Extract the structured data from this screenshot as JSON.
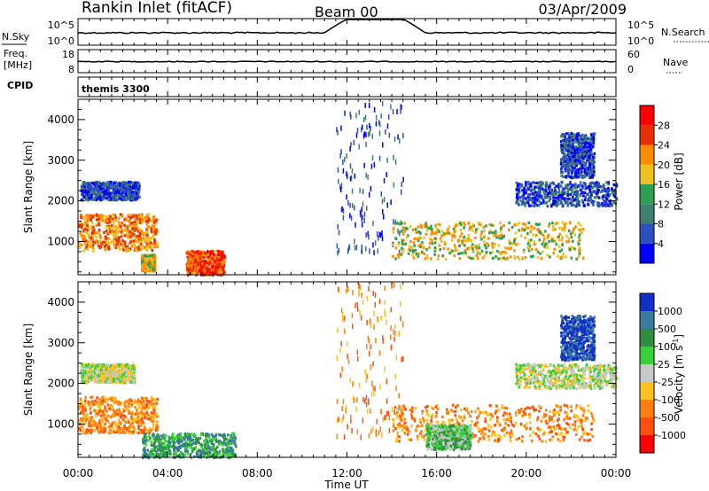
{
  "header": {
    "title": "Rankin Inlet (fitACF)",
    "beam": "Beam 00",
    "date": "03/Apr/2009"
  },
  "nsky_panel": {
    "left_label": "N.Sky",
    "right_label": "N.Search",
    "left_ticks": [
      "10^5",
      "10^0"
    ],
    "right_ticks": [
      "10^5",
      "10^0"
    ]
  },
  "freq_panel": {
    "left_label_line1": "Freq.",
    "left_label_line2": "[MHz]",
    "right_label": "Nave",
    "left_ticks": [
      "18",
      "8"
    ],
    "right_ticks": [
      "60",
      "0"
    ]
  },
  "cpid": {
    "label": "CPID",
    "value": "themis 3300"
  },
  "time_axis": {
    "label": "Time UT",
    "ticks": [
      "00:00",
      "04:00",
      "08:00",
      "12:00",
      "16:00",
      "20:00",
      "00:00"
    ]
  },
  "range_axis": {
    "label": "Slant Range [km]",
    "ticks": [
      "1000",
      "2000",
      "3000",
      "4000"
    ],
    "ylim": [
      180,
      4500
    ]
  },
  "power_bar": {
    "label": "Power [dB]",
    "ticks": [
      "4",
      "8",
      "12",
      "16",
      "20",
      "24",
      "28"
    ],
    "colors": [
      "#0000ff",
      "#2f4fbf",
      "#3f7f6f",
      "#2fa050",
      "#f0c020",
      "#ff8c00",
      "#e83000",
      "#ff0000"
    ]
  },
  "velocity_bar": {
    "label_main": "Velocity [m s",
    "label_sup": "-1",
    "label_end": "]",
    "ticks": [
      "1000",
      "500",
      "100",
      "25",
      "-25",
      "-100",
      "-500",
      "-1000"
    ],
    "colors": [
      "#1030c8",
      "#3a7ca0",
      "#2f8f3f",
      "#38d038",
      "#c8c8c8",
      "#ffc020",
      "#ff8010",
      "#ff5010",
      "#ff0000"
    ]
  },
  "chart_data": [
    {
      "type": "heatmap",
      "name": "power",
      "xlabel": "Time UT",
      "ylabel": "Slant Range [km]",
      "xlim": [
        0,
        24
      ],
      "ylim": [
        180,
        4500
      ],
      "regions": [
        {
          "t": [
            0.1,
            2.7
          ],
          "r": [
            2050,
            2500
          ],
          "level": 1
        },
        {
          "t": [
            0.0,
            3.5
          ],
          "r": [
            800,
            1700
          ],
          "level": 5
        },
        {
          "t": [
            2.8,
            3.4
          ],
          "r": [
            300,
            700
          ],
          "level": 4
        },
        {
          "t": [
            4.8,
            6.5
          ],
          "r": [
            200,
            800
          ],
          "level": 6
        },
        {
          "t": [
            11.5,
            14.5
          ],
          "r": [
            700,
            4500
          ],
          "level": 1
        },
        {
          "t": [
            14.0,
            22.5
          ],
          "r": [
            600,
            1500
          ],
          "level": 4
        },
        {
          "t": [
            19.5,
            24.0
          ],
          "r": [
            1900,
            2500
          ],
          "level": 1
        },
        {
          "t": [
            21.5,
            23.0
          ],
          "r": [
            2600,
            3700
          ],
          "level": 1
        }
      ]
    },
    {
      "type": "heatmap",
      "name": "velocity",
      "xlabel": "Time UT",
      "ylabel": "Slant Range [km]",
      "xlim": [
        0,
        24
      ],
      "ylim": [
        180,
        4500
      ],
      "regions": [
        {
          "t": [
            0.1,
            2.5
          ],
          "r": [
            2050,
            2500
          ],
          "level": 4
        },
        {
          "t": [
            0.0,
            3.5
          ],
          "r": [
            800,
            1700
          ],
          "level": 6
        },
        {
          "t": [
            2.8,
            7.0
          ],
          "r": [
            200,
            800
          ],
          "level": 2
        },
        {
          "t": [
            11.5,
            14.5
          ],
          "r": [
            700,
            4500
          ],
          "level": 6
        },
        {
          "t": [
            14.0,
            23.0
          ],
          "r": [
            600,
            1500
          ],
          "level": 6
        },
        {
          "t": [
            15.5,
            17.5
          ],
          "r": [
            400,
            1000
          ],
          "level": 3
        },
        {
          "t": [
            19.5,
            24.0
          ],
          "r": [
            1900,
            2500
          ],
          "level": 4
        },
        {
          "t": [
            21.5,
            23.0
          ],
          "r": [
            2600,
            3700
          ],
          "level": 0
        }
      ]
    }
  ]
}
